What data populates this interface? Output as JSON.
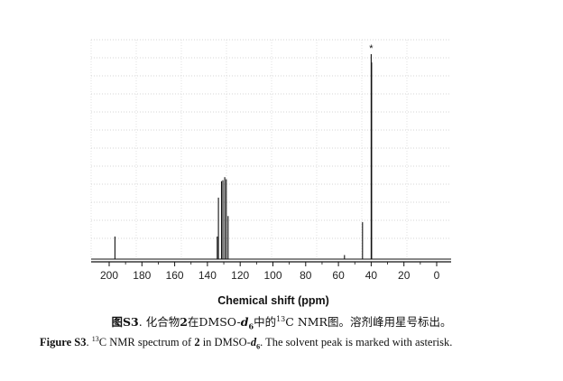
{
  "chart_data": {
    "type": "line",
    "title": "",
    "xlabel": "Chemical shift (ppm)",
    "ylabel": "",
    "xlim": [
      210,
      -10
    ],
    "x_reversed": true,
    "ylim": [
      0,
      100
    ],
    "grid": true,
    "xticks": [
      200,
      180,
      160,
      140,
      120,
      100,
      80,
      60,
      40,
      20,
      0
    ],
    "peaks": [
      {
        "ppm": 196.5,
        "intensity": 11
      },
      {
        "ppm": 134.0,
        "intensity": 11
      },
      {
        "ppm": 133.3,
        "intensity": 30
      },
      {
        "ppm": 131.4,
        "intensity": 38
      },
      {
        "ppm": 130.6,
        "intensity": 38.5
      },
      {
        "ppm": 129.4,
        "intensity": 40
      },
      {
        "ppm": 128.5,
        "intensity": 39
      },
      {
        "ppm": 127.4,
        "intensity": 21
      },
      {
        "ppm": 56.3,
        "intensity": 2
      },
      {
        "ppm": 45.3,
        "intensity": 18
      },
      {
        "ppm": 40.0,
        "intensity": 100
      },
      {
        "ppm": 39.7,
        "intensity": 96
      }
    ],
    "annotations": [
      {
        "text": "*",
        "ppm": 40.0
      }
    ]
  },
  "caption": {
    "cn": {
      "label": "图S3",
      "part1": "化合物",
      "compound": "2",
      "part2": "在DMSO-",
      "d": "d",
      "d_sub": "6",
      "part3": "中的",
      "iso": "13",
      "part4": "C NMR图。溶剂峰用星号标出。"
    },
    "en": {
      "label": "Figure S3",
      "sep": ". ",
      "iso": "13",
      "part1": "C NMR spectrum of ",
      "compound": "2",
      "part2": " in DMSO-",
      "d": "d",
      "d_sub": "6",
      "part3": ". The solvent peak is marked with asterisk."
    }
  }
}
